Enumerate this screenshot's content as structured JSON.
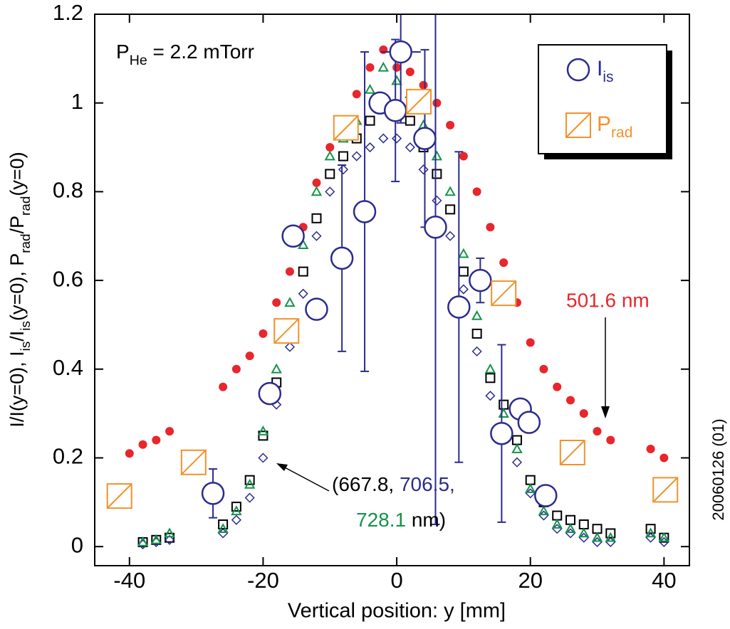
{
  "chart_data": {
    "type": "scatter",
    "xlabel": "Vertical position: y [mm]",
    "ylabel_parts": [
      "I/I(y=0), I",
      "is",
      "/I",
      "is",
      "(y=0), P",
      "rad",
      "/P",
      "rad",
      "(y=0)"
    ],
    "pressure_parts": [
      "P",
      "He",
      " = 2.2 mTorr"
    ],
    "side_label": "20060126 (01)",
    "wavelength_note": [
      [
        {
          "text": "(667.8, ",
          "color": "#000000"
        },
        {
          "text": "706.5,",
          "color": "#2b2b8f"
        }
      ],
      [
        {
          "text": "728.1",
          "color": "#14934a"
        },
        {
          "text": " nm)",
          "color": "#000000"
        }
      ]
    ],
    "red_note": {
      "text": "501.6 nm",
      "color": "#e8262c"
    },
    "xlim": [
      -45.2,
      43.8
    ],
    "ylim": [
      -0.043,
      1.2
    ],
    "xticks": [
      -40,
      -20,
      0,
      20,
      40
    ],
    "yticks": [
      0,
      0.2,
      0.4,
      0.6,
      0.8,
      1,
      1.2
    ],
    "series": [
      {
        "marker": "circle-filled",
        "color": "#e8262c",
        "x": [
          -40,
          -38,
          -36,
          -34,
          -26,
          -24,
          -22,
          -20,
          -18,
          -16,
          -14,
          -12,
          -10,
          -8,
          -6,
          -4,
          -2,
          0,
          2,
          4,
          6,
          8,
          10,
          12,
          14,
          16,
          18,
          20,
          22,
          24,
          26,
          28,
          30,
          32,
          38,
          40
        ],
        "values": [
          0.21,
          0.23,
          0.24,
          0.26,
          0.36,
          0.4,
          0.43,
          0.48,
          0.55,
          0.62,
          0.72,
          0.82,
          0.9,
          0.96,
          1.02,
          1.08,
          1.12,
          1.08,
          1.07,
          1.04,
          1.0,
          0.95,
          0.88,
          0.8,
          0.72,
          0.64,
          0.55,
          0.46,
          0.4,
          0.36,
          0.33,
          0.3,
          0.26,
          0.24,
          0.22,
          0.2
        ]
      },
      {
        "marker": "square-open",
        "color": "#000000",
        "x": [
          -38,
          -36,
          -34,
          -26,
          -24,
          -22,
          -20,
          -18,
          -16,
          -14,
          -12,
          -10,
          -8,
          -6,
          -4,
          -2,
          0,
          2,
          4,
          6,
          8,
          10,
          12,
          14,
          16,
          18,
          20,
          22,
          24,
          26,
          28,
          30,
          32,
          38,
          40
        ],
        "values": [
          0.01,
          0.015,
          0.02,
          0.05,
          0.09,
          0.15,
          0.25,
          0.37,
          0.5,
          0.62,
          0.74,
          0.84,
          0.88,
          0.92,
          0.96,
          1.0,
          0.97,
          0.96,
          0.9,
          0.84,
          0.76,
          0.62,
          0.48,
          0.38,
          0.32,
          0.24,
          0.15,
          0.1,
          0.07,
          0.06,
          0.05,
          0.04,
          0.03,
          0.04,
          0.02
        ]
      },
      {
        "marker": "diamond-open",
        "color": "#2b2b8f",
        "x": [
          -38,
          -36,
          -34,
          -26,
          -24,
          -22,
          -20,
          -18,
          -16,
          -14,
          -12,
          -10,
          -8,
          -6,
          -4,
          -2,
          0,
          2,
          4,
          6,
          8,
          10,
          12,
          14,
          16,
          18,
          20,
          22,
          24,
          26,
          28,
          30,
          32,
          38,
          40
        ],
        "values": [
          0.005,
          0.01,
          0.015,
          0.03,
          0.06,
          0.11,
          0.2,
          0.32,
          0.45,
          0.57,
          0.7,
          0.8,
          0.85,
          0.88,
          0.9,
          0.92,
          0.92,
          0.9,
          0.85,
          0.78,
          0.7,
          0.58,
          0.44,
          0.34,
          0.26,
          0.19,
          0.12,
          0.07,
          0.04,
          0.03,
          0.02,
          0.01,
          0.01,
          0.02,
          0.01
        ]
      },
      {
        "marker": "triangle-open",
        "color": "#14934a",
        "x": [
          -38,
          -36,
          -34,
          -26,
          -24,
          -22,
          -20,
          -18,
          -16,
          -14,
          -12,
          -10,
          -8,
          -6,
          -4,
          -2,
          0,
          2,
          4,
          6,
          8,
          10,
          12,
          14,
          16,
          18,
          20,
          22,
          24,
          26,
          28,
          30,
          32,
          38,
          40
        ],
        "values": [
          0.01,
          0.015,
          0.03,
          0.04,
          0.08,
          0.14,
          0.26,
          0.4,
          0.55,
          0.68,
          0.8,
          0.88,
          0.92,
          0.96,
          1.03,
          1.08,
          1.05,
          1.02,
          0.95,
          0.88,
          0.8,
          0.66,
          0.52,
          0.4,
          0.3,
          0.22,
          0.13,
          0.08,
          0.05,
          0.04,
          0.03,
          0.02,
          0.02,
          0.03,
          0.02
        ]
      },
      {
        "marker": "circle-open",
        "color": "#2b2b8f",
        "name": "I",
        "name_sub": "is",
        "x": [
          -27.5,
          -19,
          -15.5,
          -12,
          -8.2,
          -4.8,
          -2.5,
          -0.2,
          0.6,
          4.2,
          5.8,
          9.3,
          12.5,
          15.7,
          18.5,
          19.8,
          22.3
        ],
        "values": [
          0.12,
          0.345,
          0.7,
          0.535,
          0.65,
          0.755,
          1.0,
          0.983,
          1.115,
          0.92,
          0.72,
          0.54,
          0.6,
          0.255,
          0.31,
          0.28,
          0.115
        ],
        "yerr": [
          0.055,
          0,
          0,
          0,
          0.21,
          0.36,
          0,
          0.16,
          0.16,
          0.2,
          0.67,
          0.35,
          0.05,
          0.2,
          0,
          0,
          0
        ],
        "xerr": [
          1.5,
          0,
          1.5,
          0,
          0,
          0,
          0,
          0,
          3,
          0,
          0,
          0,
          0,
          0,
          0,
          0,
          1.5
        ]
      },
      {
        "marker": "square-slash",
        "color": "#f0922c",
        "name": "P",
        "name_sub": "rad",
        "x": [
          -41.5,
          -30.4,
          -16.5,
          -7.6,
          3.3,
          16,
          26.3,
          40.2
        ],
        "values": [
          0.114,
          0.19,
          0.486,
          0.944,
          1.003,
          0.571,
          0.212,
          0.128
        ]
      }
    ]
  }
}
